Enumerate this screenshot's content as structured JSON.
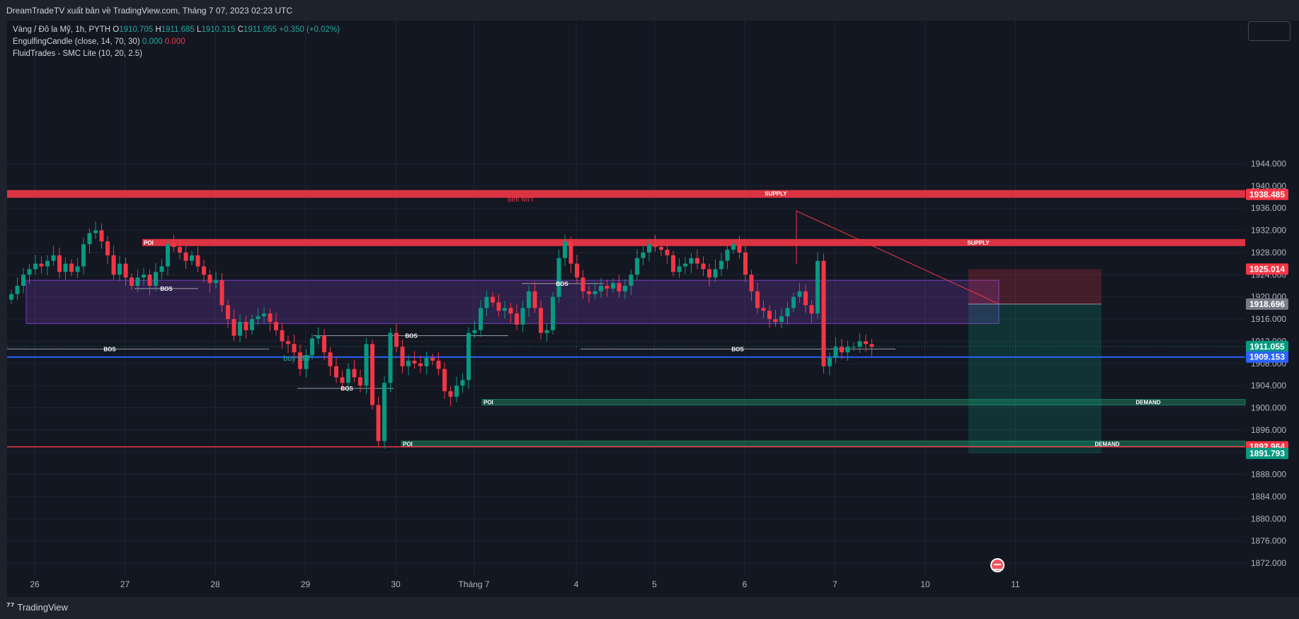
{
  "header": {
    "publish_text": "DreamTradeTV xuất bản về TradingView.com, Tháng 7 07, 2023 02:23 UTC"
  },
  "legend": {
    "symbol": "Vàng / Đô la Mỹ, 1h, PYTH",
    "open_label": "O",
    "open": "1910.705",
    "high_label": "H",
    "high": "1911.685",
    "low_label": "L",
    "low": "1910.315",
    "close_label": "C",
    "close": "1911.055",
    "change": "+0.350 (+0.02%)",
    "indicator1": "EngulfingCandle (close, 14, 70, 30)",
    "indicator1_v1": "0.000",
    "indicator1_v2": "0.000",
    "indicator2": "FluidTrades - SMC Lite  (10, 20, 2.5)"
  },
  "footer": {
    "brand": "TradingView",
    "logo": "tv-logo-icon"
  },
  "colors": {
    "up": "#26a69a",
    "down": "#f23645",
    "supply": "#f23645",
    "demand": "#1e7a5a",
    "blue": "#2962ff",
    "poi_zone": "#7b3fbf"
  },
  "chart_data": {
    "type": "candlestick",
    "symbol": "XAUUSD",
    "timeframe": "1h",
    "ylim": [
      1869,
      1948
    ],
    "y_ticks": [
      "1944.000",
      "1940.000",
      "1936.000",
      "1932.000",
      "1928.000",
      "1924.000",
      "1920.000",
      "1916.000",
      "1912.000",
      "1908.000",
      "1904.000",
      "1900.000",
      "1896.000",
      "1892.000",
      "1888.000",
      "1884.000",
      "1880.000",
      "1876.000",
      "1872.000"
    ],
    "x_ticks": [
      "26",
      "27",
      "28",
      "29",
      "30",
      "Tháng 7",
      "4",
      "5",
      "6",
      "7",
      "10",
      "11"
    ],
    "x_tick_index": [
      0,
      15,
      30,
      45,
      60,
      73,
      90,
      103,
      118,
      133,
      148,
      163
    ],
    "closes": [
      1920.5,
      1922.0,
      1924.0,
      1925.0,
      1926.0,
      1925.5,
      1926.5,
      1927.5,
      1924.5,
      1926.0,
      1924.5,
      1925.5,
      1929.5,
      1931.5,
      1932.0,
      1930.0,
      1927.5,
      1924.0,
      1926.0,
      1923.5,
      1922.0,
      1923.5,
      1924.0,
      1922.0,
      1924.5,
      1925.5,
      1929.5,
      1929.0,
      1928.0,
      1926.5,
      1927.5,
      1925.5,
      1924.0,
      1922.5,
      1923.0,
      1918.5,
      1916.0,
      1913.0,
      1915.5,
      1914.0,
      1916.0,
      1916.5,
      1917.0,
      1915.5,
      1914.0,
      1912.0,
      1911.5,
      1910.0,
      1907.0,
      1909.5,
      1912.5,
      1913.0,
      1910.0,
      1907.5,
      1905.5,
      1904.5,
      1907.0,
      1905.5,
      1904.0,
      1911.5,
      1900.5,
      1894.0,
      1904.5,
      1913.5,
      1911.0,
      1907.5,
      1908.5,
      1908.0,
      1907.5,
      1909.0,
      1908.5,
      1907.0,
      1903.0,
      1902.0,
      1904.0,
      1905.0,
      1913.5,
      1914.0,
      1918.0,
      1920.0,
      1919.0,
      1917.5,
      1918.0,
      1917.0,
      1915.0,
      1918.0,
      1921.0,
      1918.0,
      1913.5,
      1914.0,
      1920.0,
      1927.0,
      1930.0,
      1926.0,
      1923.5,
      1921.0,
      1920.5,
      1921.0,
      1922.0,
      1921.5,
      1922.5,
      1921.0,
      1922.0,
      1924.0,
      1927.0,
      1928.0,
      1929.5,
      1929.0,
      1928.5,
      1927.5,
      1924.5,
      1925.5,
      1926.0,
      1927.0,
      1926.0,
      1925.0,
      1923.5,
      1925.0,
      1926.5,
      1928.5,
      1929.5,
      1928.0,
      1924.0,
      1921.0,
      1918.0,
      1917.5,
      1916.0,
      1915.5,
      1916.5,
      1918.0,
      1920.0,
      1921.0,
      1918.5,
      1917.0,
      1926.5,
      1907.5,
      1909.0,
      1911.0,
      1910.0,
      1911.0,
      1911.0,
      1912.0,
      1911.5,
      1911.0
    ]
  },
  "annotations": {
    "supply_top_label": "SUPPLY",
    "supply_top_value": 1938.5,
    "supply_mid_label": "SUPPLY",
    "supply_mid_value": 1929.8,
    "poi_top_label": "POI",
    "demand1_label": "DEMAND",
    "demand1_value": 1901.0,
    "poi_demand1_label": "POI",
    "demand2_label": "DEMAND",
    "demand2_value": 1893.5,
    "poi_demand2_label": "POI",
    "bos_labels": [
      "BOS",
      "BOS",
      "BOS",
      "BOS",
      "BOS",
      "BOS"
    ],
    "sell_mit": "sell MIT",
    "buy_mit": "buy MIT",
    "price_tags": [
      {
        "text": "1938.485",
        "value": 1938.485,
        "color": "#f23645"
      },
      {
        "text": "1925.014",
        "value": 1925.014,
        "color": "#f23645"
      },
      {
        "text": "1918.696",
        "value": 1918.696,
        "color": "#787b86"
      },
      {
        "text": "1911.055",
        "value": 1911.055,
        "color": "#089981"
      },
      {
        "text": "1909.153",
        "value": 1909.153,
        "color": "#2962ff"
      },
      {
        "text": "1892.964",
        "value": 1892.964,
        "color": "#f23645"
      },
      {
        "text": "1891.793",
        "value": 1891.793,
        "color": "#089981"
      }
    ]
  }
}
